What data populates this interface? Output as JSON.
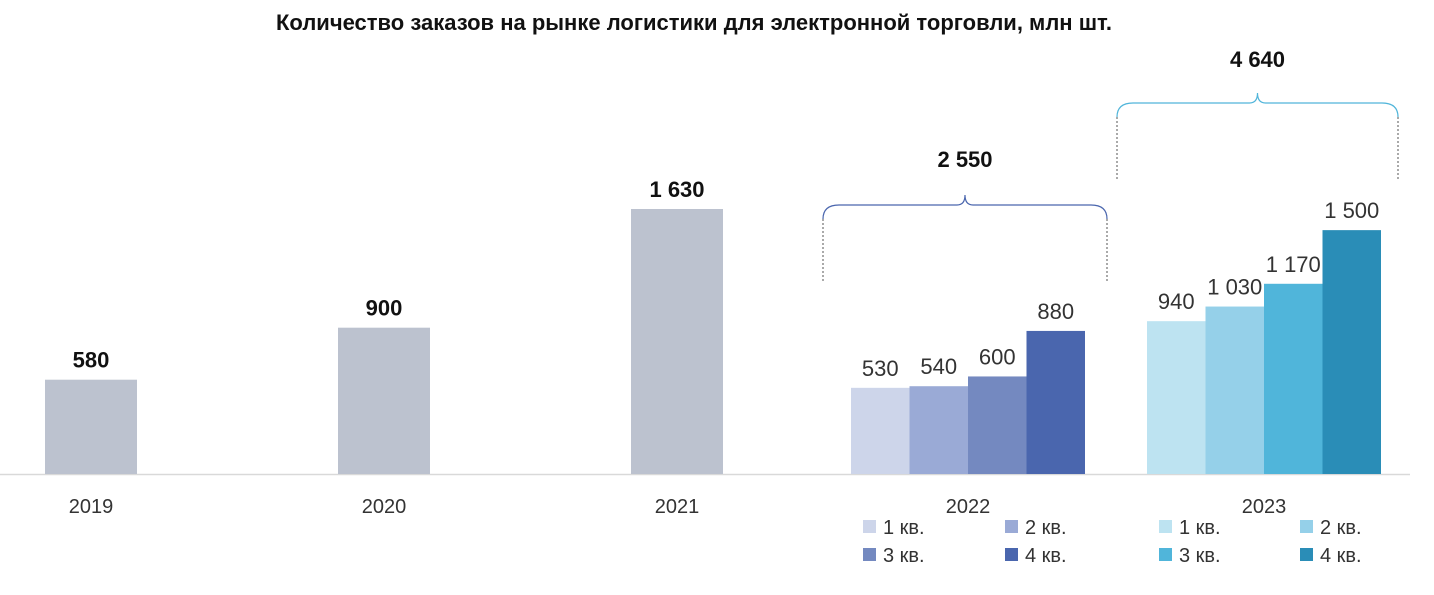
{
  "chart_data": {
    "type": "bar",
    "title": "Количество заказов на рынке логистики для электронной торговли, млн шт.",
    "xlabel": "",
    "ylabel": "",
    "ylim": [
      0,
      1650
    ],
    "grid": false,
    "annual": [
      {
        "category": "2019",
        "value": 580,
        "label": "580",
        "color": "#bcc2cf"
      },
      {
        "category": "2020",
        "value": 900,
        "label": "900",
        "color": "#bcc2cf"
      },
      {
        "category": "2021",
        "value": 1630,
        "label": "1 630",
        "color": "#bcc2cf"
      }
    ],
    "quarterly": [
      {
        "category": "2022",
        "total": 2550,
        "total_label": "2 550",
        "quarters": [
          {
            "name": "1 кв.",
            "value": 530,
            "label": "530",
            "color": "#cdd5ea"
          },
          {
            "name": "2 кв.",
            "value": 540,
            "label": "540",
            "color": "#9aaad6"
          },
          {
            "name": "3 кв.",
            "value": 600,
            "label": "600",
            "color": "#7489c0"
          },
          {
            "name": "4 кв.",
            "value": 880,
            "label": "880",
            "color": "#4a66ae"
          }
        ]
      },
      {
        "category": "2023",
        "total": 4640,
        "total_label": "4 640",
        "quarters": [
          {
            "name": "1 кв.",
            "value": 940,
            "label": "940",
            "color": "#bde3f1"
          },
          {
            "name": "2 кв.",
            "value": 1030,
            "label": "1 030",
            "color": "#95d0e9"
          },
          {
            "name": "3 кв.",
            "value": 1170,
            "label": "1 170",
            "color": "#50b5da"
          },
          {
            "name": "4 кв.",
            "value": 1500,
            "label": "1 500",
            "color": "#2a8db7"
          }
        ]
      }
    ],
    "legend_position": "bottom"
  },
  "colors": {
    "axis": "#d9d9d9",
    "brace_2022": "#4a66ae",
    "brace_2023": "#50b5da"
  }
}
